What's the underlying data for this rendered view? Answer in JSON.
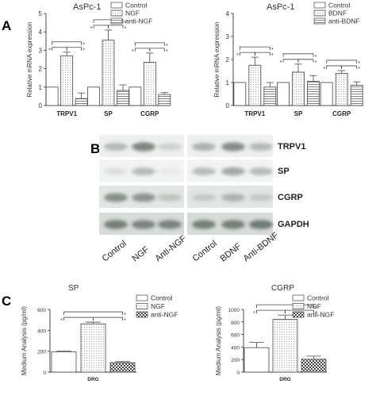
{
  "panel_letters": {
    "a": "A",
    "b": "B",
    "c": "C"
  },
  "chart_data": [
    {
      "type": "bar",
      "panel": "A",
      "title": "AsPc-1",
      "ylabel": "Relative mRNA expression",
      "ylim": [
        0,
        5
      ],
      "yticks": [
        0,
        1,
        2,
        3,
        4,
        5
      ],
      "categories": [
        "TRPV1",
        "SP",
        "CGRP"
      ],
      "legend_position": "top-right",
      "series": [
        {
          "name": "Control",
          "values": [
            1.0,
            1.0,
            1.0
          ],
          "errors": [
            0,
            0,
            0
          ]
        },
        {
          "name": "NGF",
          "values": [
            2.7,
            3.55,
            2.35
          ],
          "errors": [
            0.2,
            0.55,
            0.5
          ]
        },
        {
          "name": "anti-NGF",
          "values": [
            0.38,
            0.82,
            0.6
          ],
          "errors": [
            0.3,
            0.3,
            0.1
          ]
        }
      ],
      "significance": [
        "*",
        "*",
        "*"
      ]
    },
    {
      "type": "bar",
      "panel": "A",
      "title": "AsPc-1",
      "ylabel": "Relative mRNA expression",
      "ylim": [
        0,
        4
      ],
      "yticks": [
        0,
        1,
        2,
        3,
        4
      ],
      "categories": [
        "TRPV1",
        "SP",
        "CGRP"
      ],
      "legend_position": "top-right",
      "series": [
        {
          "name": "Control",
          "values": [
            1.0,
            1.0,
            1.0
          ],
          "errors": [
            0,
            0,
            0
          ]
        },
        {
          "name": "BDNF",
          "values": [
            1.75,
            1.45,
            1.4
          ],
          "errors": [
            0.35,
            0.35,
            0.12
          ]
        },
        {
          "name": "anti-BDNF",
          "values": [
            0.8,
            1.05,
            0.88
          ],
          "errors": [
            0.2,
            0.25,
            0.15
          ]
        }
      ],
      "significance": [
        "*",
        "*",
        "*"
      ]
    },
    {
      "type": "bar",
      "panel": "C",
      "title": "SP",
      "ylabel": "Medium Analysis (pg/ml)",
      "ylim": [
        0,
        600
      ],
      "yticks": [
        0,
        200,
        400,
        600
      ],
      "categories": [
        "DRG"
      ],
      "legend_position": "top-right",
      "series": [
        {
          "name": "Control",
          "values": [
            195
          ],
          "errors": [
            6
          ]
        },
        {
          "name": "NGF",
          "values": [
            462
          ],
          "errors": [
            16
          ]
        },
        {
          "name": "anti-NGF",
          "values": [
            90
          ],
          "errors": [
            10
          ]
        }
      ],
      "significance": [
        "*",
        "*",
        "*"
      ]
    },
    {
      "type": "bar",
      "panel": "C",
      "title": "CGRP",
      "ylabel": "Medium Analysis (pg/ml)",
      "ylim": [
        0,
        1000
      ],
      "yticks": [
        0,
        200,
        400,
        600,
        800,
        1000
      ],
      "categories": [
        "DRG"
      ],
      "legend_position": "top-right",
      "series": [
        {
          "name": "Control",
          "values": [
            390
          ],
          "errors": [
            85
          ]
        },
        {
          "name": "NGF",
          "values": [
            840
          ],
          "errors": [
            70
          ]
        },
        {
          "name": "anti-NGF",
          "values": [
            205
          ],
          "errors": [
            50
          ]
        }
      ],
      "significance": [
        "*",
        "*",
        "*"
      ]
    }
  ],
  "blot": {
    "rows": [
      "TRPV1",
      "SP",
      "CGRP",
      "GAPDH"
    ],
    "lanes": [
      "Control",
      "NGF",
      "Anti-NGF",
      "Control",
      "BDNF",
      "Anti-BDNF"
    ]
  }
}
